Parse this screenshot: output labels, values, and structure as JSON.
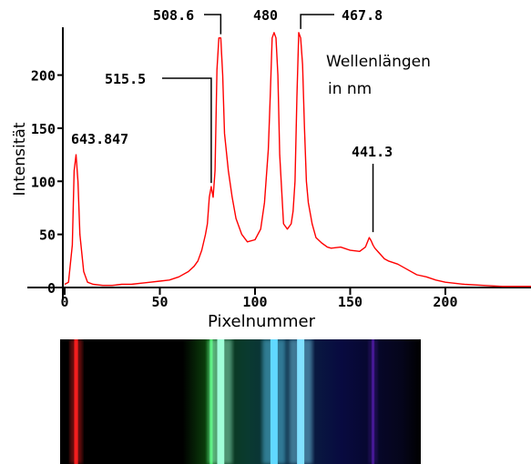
{
  "chart_data": {
    "type": "line",
    "title": "",
    "xlabel": "Pixelnummer",
    "ylabel": "Intensität",
    "xlim": [
      0,
      245
    ],
    "ylim": [
      0,
      245
    ],
    "xticks": [
      0,
      50,
      100,
      150,
      200
    ],
    "yticks": [
      0,
      50,
      100,
      150,
      200
    ],
    "grid": false,
    "line_color": "#ff0000",
    "legend_text": [
      "Wellenlängen",
      "in nm"
    ],
    "series": [
      {
        "x": [
          0,
          2,
          4,
          5,
          6,
          7,
          8,
          10,
          12,
          15,
          20,
          25,
          30,
          35,
          40,
          45,
          50,
          55,
          60,
          65,
          68,
          70,
          72,
          74,
          75,
          76,
          77,
          78,
          79,
          80,
          81,
          82,
          83,
          84,
          86,
          88,
          90,
          93,
          96,
          100,
          103,
          105,
          107,
          108,
          109,
          110,
          111,
          112,
          113,
          115,
          117,
          119,
          120,
          121,
          122,
          123,
          124,
          125,
          126,
          127,
          128,
          130,
          132,
          135,
          138,
          140,
          145,
          150,
          155,
          158,
          160,
          161,
          162,
          163,
          165,
          168,
          170,
          175,
          180,
          185,
          190,
          195,
          200,
          210,
          220,
          230,
          240,
          245
        ],
        "y": [
          3,
          5,
          40,
          110,
          125,
          100,
          50,
          15,
          5,
          3,
          2,
          2,
          3,
          3,
          4,
          5,
          6,
          7,
          10,
          15,
          20,
          25,
          35,
          50,
          60,
          85,
          95,
          85,
          110,
          205,
          235,
          235,
          200,
          145,
          110,
          85,
          65,
          50,
          43,
          45,
          55,
          80,
          130,
          180,
          235,
          240,
          235,
          200,
          125,
          60,
          55,
          60,
          72,
          100,
          180,
          240,
          235,
          210,
          150,
          100,
          80,
          60,
          47,
          42,
          38,
          37,
          38,
          35,
          34,
          38,
          47,
          44,
          40,
          37,
          33,
          27,
          25,
          22,
          17,
          12,
          10,
          7,
          5,
          3,
          2,
          1,
          1,
          1
        ]
      }
    ],
    "annotations": [
      {
        "label": "643.847",
        "x": 6,
        "y": 125
      },
      {
        "label": "515.5",
        "x": 77,
        "y": 95
      },
      {
        "label": "508.6",
        "x": 82,
        "y": 235
      },
      {
        "label": "480",
        "x": 110,
        "y": 240
      },
      {
        "label": "467.8",
        "x": 124,
        "y": 240
      },
      {
        "label": "441.3",
        "x": 162,
        "y": 47
      }
    ],
    "spectrum_lines": [
      {
        "x": 6,
        "color": "#ff2020",
        "peak": 125
      },
      {
        "x": 77,
        "color": "#40ff60",
        "peak": 95
      },
      {
        "x": 82,
        "color": "#a0ffd8",
        "peak": 235
      },
      {
        "x": 110,
        "color": "#60d8ff",
        "peak": 240
      },
      {
        "x": 124,
        "color": "#80e0ff",
        "peak": 240
      },
      {
        "x": 162,
        "color": "#6020c0",
        "peak": 47
      }
    ]
  }
}
